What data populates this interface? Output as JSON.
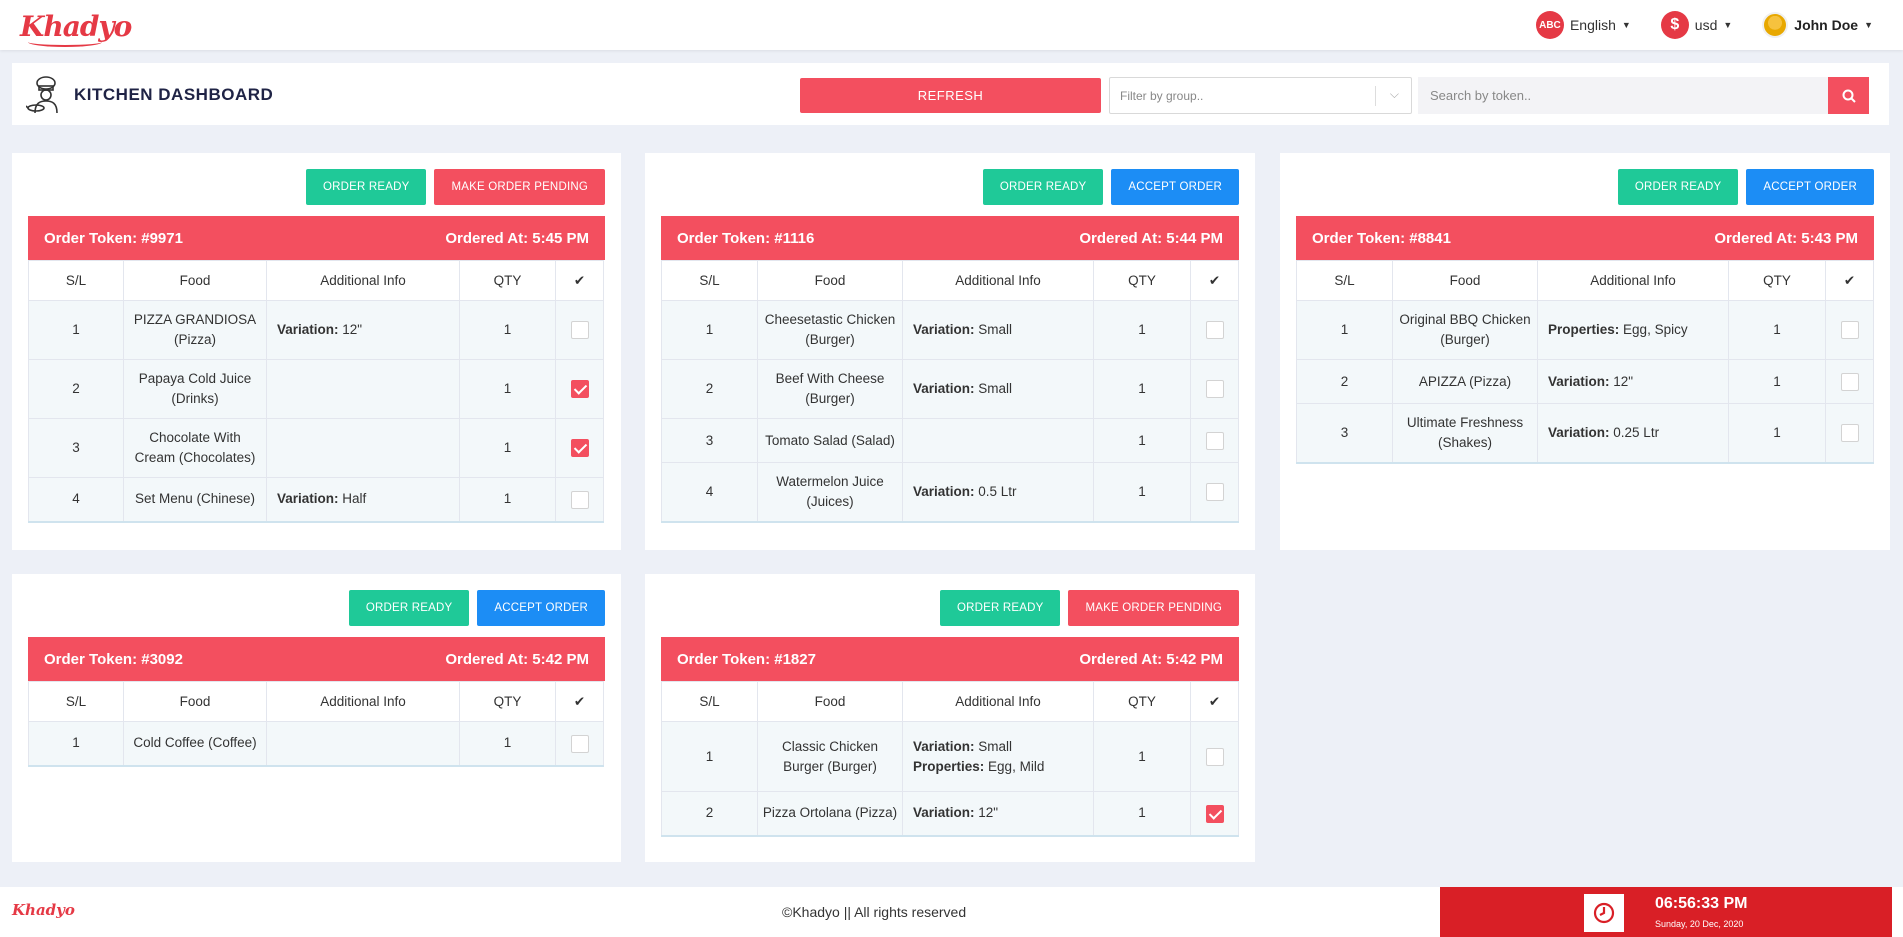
{
  "brand": {
    "name": "Khadyo"
  },
  "nav": {
    "language": {
      "badge": "ABC",
      "label": "English"
    },
    "currency": {
      "badge": "$",
      "label": "usd"
    },
    "user": {
      "name": "John Doe"
    }
  },
  "header": {
    "title": "KITCHEN DASHBOARD",
    "refresh_label": "REFRESH",
    "filter_placeholder": "Filter by group..",
    "search_placeholder": "Search by token.."
  },
  "table_headers": {
    "sl": "S/L",
    "food": "Food",
    "info": "Additional Info",
    "qty": "QTY"
  },
  "orders": [
    {
      "token": "Order Token: #9971",
      "time": "Ordered At: 5:45 PM",
      "ready_label": "ORDER READY",
      "action_label": "MAKE ORDER PENDING",
      "action_color": "red",
      "items": [
        {
          "sl": "1",
          "food": "PIZZA GRANDIOSA (Pizza)",
          "info": [
            [
              "Variation:",
              "12\""
            ]
          ],
          "qty": "1",
          "checked": false
        },
        {
          "sl": "2",
          "food": "Papaya Cold Juice (Drinks)",
          "info": [],
          "qty": "1",
          "checked": true
        },
        {
          "sl": "3",
          "food": "Chocolate With Cream (Chocolates)",
          "info": [],
          "qty": "1",
          "checked": true
        },
        {
          "sl": "4",
          "food": "Set Menu (Chinese)",
          "info": [
            [
              "Variation:",
              "Half"
            ]
          ],
          "qty": "1",
          "checked": false
        }
      ]
    },
    {
      "token": "Order Token: #1116",
      "time": "Ordered At: 5:44 PM",
      "ready_label": "ORDER READY",
      "action_label": "ACCEPT ORDER",
      "action_color": "blue",
      "items": [
        {
          "sl": "1",
          "food": "Cheesetastic Chicken (Burger)",
          "info": [
            [
              "Variation:",
              "Small"
            ]
          ],
          "qty": "1",
          "checked": false
        },
        {
          "sl": "2",
          "food": "Beef With Cheese (Burger)",
          "info": [
            [
              "Variation:",
              "Small"
            ]
          ],
          "qty": "1",
          "checked": false
        },
        {
          "sl": "3",
          "food": "Tomato Salad (Salad)",
          "info": [],
          "qty": "1",
          "checked": false
        },
        {
          "sl": "4",
          "food": "Watermelon Juice (Juices)",
          "info": [
            [
              "Variation:",
              "0.5 Ltr"
            ]
          ],
          "qty": "1",
          "checked": false
        }
      ]
    },
    {
      "token": "Order Token: #8841",
      "time": "Ordered At: 5:43 PM",
      "ready_label": "ORDER READY",
      "action_label": "ACCEPT ORDER",
      "action_color": "blue",
      "items": [
        {
          "sl": "1",
          "food": "Original BBQ Chicken (Burger)",
          "info": [
            [
              "Properties:",
              "Egg, Spicy"
            ]
          ],
          "qty": "1",
          "checked": false
        },
        {
          "sl": "2",
          "food": "APIZZA (Pizza)",
          "info": [
            [
              "Variation:",
              "12\""
            ]
          ],
          "qty": "1",
          "checked": false
        },
        {
          "sl": "3",
          "food": "Ultimate Freshness (Shakes)",
          "info": [
            [
              "Variation:",
              "0.25 Ltr"
            ]
          ],
          "qty": "1",
          "checked": false
        }
      ]
    },
    {
      "token": "Order Token: #3092",
      "time": "Ordered At: 5:42 PM",
      "ready_label": "ORDER READY",
      "action_label": "ACCEPT ORDER",
      "action_color": "blue",
      "items": [
        {
          "sl": "1",
          "food": "Cold Coffee (Coffee)",
          "info": [],
          "qty": "1",
          "checked": false
        }
      ]
    },
    {
      "token": "Order Token: #1827",
      "time": "Ordered At: 5:42 PM",
      "ready_label": "ORDER READY",
      "action_label": "MAKE ORDER PENDING",
      "action_color": "red",
      "items": [
        {
          "sl": "1",
          "food": "Classic Chicken Burger (Burger)",
          "info": [
            [
              "Variation:",
              "Small"
            ],
            [
              "Properties:",
              "Egg, Mild"
            ]
          ],
          "qty": "1",
          "checked": false
        },
        {
          "sl": "2",
          "food": "Pizza Ortolana (Pizza)",
          "info": [
            [
              "Variation:",
              "12\""
            ]
          ],
          "qty": "1",
          "checked": true
        }
      ]
    }
  ],
  "footer": {
    "copyright": "©Khadyo || All rights reserved",
    "time": "06:56:33 PM",
    "date": "Sunday, 20 Dec, 2020"
  },
  "colors": {
    "accent": "#f34f5f",
    "green": "#1fc998",
    "blue": "#1c8df5",
    "clock_bg": "#d91f26"
  }
}
